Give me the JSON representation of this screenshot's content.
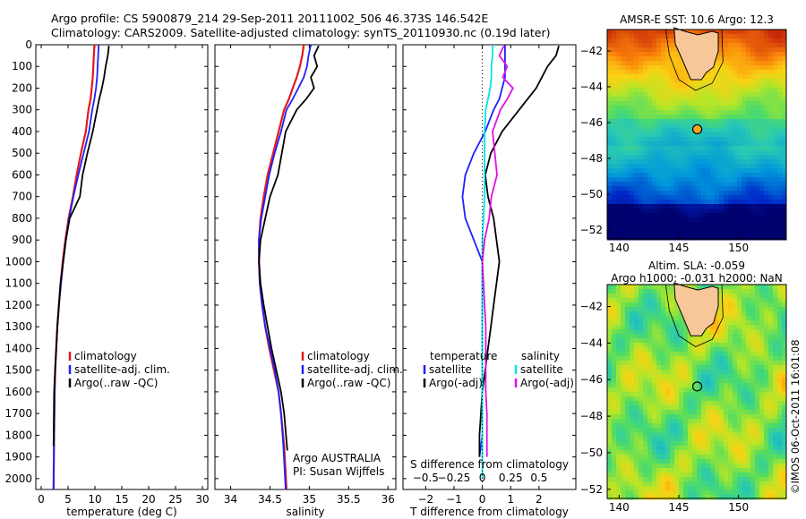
{
  "header": {
    "line1": "Argo profile: CS 5900879_214 29-Sep-2011 20111002_506 46.373S 146.542E",
    "line2": "Climatology: CARS2009. Satellite-adjusted climatology: synTS_20110930.nc (0.19d later)"
  },
  "credit": "©IMOS 06-Oct-2011 16:01:08",
  "colors": {
    "climatology": "#e41a1c",
    "satellite": "#1f1fff",
    "argo": "#000000",
    "sal_satellite": "#00e5e5",
    "sal_argo": "#e010e0",
    "land": "#f7c79a"
  },
  "chart_data": [
    {
      "type": "line",
      "xlabel": "temperature (deg C)",
      "ylabel": "",
      "xlim": [
        -1,
        31
      ],
      "ylim": [
        2050,
        0
      ],
      "xticks": [
        0,
        5,
        10,
        15,
        20,
        25,
        30
      ],
      "yticks": [
        0,
        100,
        200,
        300,
        400,
        500,
        600,
        700,
        800,
        900,
        1000,
        1100,
        1200,
        1300,
        1400,
        1500,
        1600,
        1700,
        1800,
        1900,
        2000
      ],
      "legend": [
        "climatology",
        "satellite-adj. clim.",
        "Argo(..raw -QC)"
      ],
      "legend_position": "lower-center",
      "series": [
        {
          "name": "climatology",
          "color": "#e41a1c",
          "x": [
            9.9,
            9.8,
            9.7,
            9.6,
            9.4,
            9.2,
            8.8,
            8.3,
            7.4,
            6.6,
            5.9,
            5.1,
            4.5,
            4.0,
            3.6,
            3.3,
            3.0,
            2.8,
            2.6,
            2.5,
            2.4,
            2.3
          ],
          "y": [
            0,
            50,
            100,
            150,
            200,
            250,
            300,
            400,
            500,
            600,
            700,
            800,
            900,
            1000,
            1100,
            1200,
            1300,
            1400,
            1500,
            1600,
            1800,
            2050
          ]
        },
        {
          "name": "satellite-adj. clim.",
          "color": "#1f1fff",
          "x": [
            10.7,
            10.6,
            10.5,
            10.4,
            10.2,
            9.9,
            9.5,
            8.9,
            7.9,
            6.9,
            6.0,
            5.2,
            4.6,
            4.1,
            3.7,
            3.3,
            3.0,
            2.8,
            2.6,
            2.5,
            2.4,
            2.3
          ],
          "y": [
            0,
            50,
            100,
            150,
            200,
            250,
            300,
            400,
            500,
            600,
            700,
            800,
            900,
            1000,
            1100,
            1200,
            1300,
            1400,
            1500,
            1600,
            1800,
            2050
          ]
        },
        {
          "name": "Argo(..raw -QC)",
          "color": "#000000",
          "x": [
            12.6,
            12.4,
            12.0,
            11.7,
            11.3,
            10.8,
            10.4,
            9.6,
            8.6,
            7.7,
            7.2,
            5.3,
            4.6,
            4.1,
            3.6,
            3.3,
            3.0,
            2.8,
            2.6,
            2.4,
            2.3
          ],
          "y": [
            5,
            50,
            100,
            150,
            200,
            250,
            300,
            400,
            500,
            600,
            700,
            800,
            900,
            1000,
            1100,
            1200,
            1300,
            1400,
            1500,
            1600,
            1850
          ]
        }
      ]
    },
    {
      "type": "line",
      "xlabel": "salinity",
      "ylabel": "",
      "xlim": [
        33.8,
        36.1
      ],
      "ylim": [
        2050,
        0
      ],
      "xticks": [
        34,
        34.5,
        35,
        35.5,
        36
      ],
      "legend": [
        "climatology",
        "satellite-adj. clim.",
        "Argo(..raw -QC)"
      ],
      "legend_position": "lower-right",
      "annotation": [
        "Argo AUSTRALIA",
        "PI: Susan Wijffels"
      ],
      "series": [
        {
          "name": "climatology",
          "color": "#e41a1c",
          "x": [
            34.93,
            34.91,
            34.88,
            34.84,
            34.79,
            34.74,
            34.68,
            34.61,
            34.54,
            34.47,
            34.42,
            34.38,
            34.36,
            34.36,
            34.37,
            34.4,
            34.44,
            34.49,
            34.55,
            34.61,
            34.64,
            34.68,
            34.71
          ],
          "y": [
            0,
            50,
            100,
            150,
            200,
            250,
            300,
            400,
            500,
            600,
            700,
            800,
            900,
            1000,
            1100,
            1200,
            1300,
            1400,
            1500,
            1600,
            1700,
            1850,
            2050
          ]
        },
        {
          "name": "satellite-adj. clim.",
          "color": "#1f1fff",
          "x": [
            35.02,
            34.99,
            34.97,
            34.93,
            34.86,
            34.79,
            34.71,
            34.64,
            34.56,
            34.49,
            34.44,
            34.39,
            34.36,
            34.36,
            34.37,
            34.4,
            34.44,
            34.5,
            34.56,
            34.61,
            34.64,
            34.67,
            34.7
          ],
          "y": [
            0,
            50,
            100,
            150,
            200,
            250,
            300,
            400,
            500,
            600,
            700,
            800,
            900,
            1000,
            1100,
            1200,
            1300,
            1400,
            1500,
            1600,
            1700,
            1850,
            2050
          ]
        },
        {
          "name": "Argo(..raw -QC)",
          "color": "#000000",
          "x": [
            35.12,
            35.06,
            35.1,
            35.02,
            35.06,
            34.96,
            34.84,
            34.7,
            34.65,
            34.6,
            34.5,
            34.44,
            34.38,
            34.36,
            34.38,
            34.42,
            34.47,
            34.52,
            34.58,
            34.64,
            34.68,
            34.72
          ],
          "y": [
            5,
            50,
            100,
            150,
            200,
            250,
            300,
            400,
            500,
            600,
            700,
            800,
            900,
            1000,
            1100,
            1200,
            1300,
            1400,
            1500,
            1600,
            1700,
            1870
          ]
        }
      ]
    },
    {
      "type": "line",
      "xlabel": "T difference from climatology",
      "title_inside": "S difference from climatology",
      "xlim": [
        -2.8,
        3.3
      ],
      "ylim": [
        2050,
        0
      ],
      "xticks": [
        -2,
        -1,
        0,
        1,
        2
      ],
      "xticks_salinity": [
        -0.5,
        -0.25,
        0,
        0.25,
        0.5
      ],
      "legend_groups": [
        {
          "header": "temperature",
          "items": [
            "satellite",
            "Argo(-adj)"
          ]
        },
        {
          "header": "salinity",
          "items": [
            "satellite",
            "Argo(-adj)"
          ]
        }
      ],
      "series": [
        {
          "name": "temperature satellite",
          "color": "#1f1fff",
          "x": [
            0.8,
            0.8,
            0.8,
            0.8,
            0.7,
            0.6,
            0.4,
            0.1,
            -0.3,
            -0.6,
            -0.7,
            -0.6,
            -0.3,
            0.0,
            0.0,
            0.0,
            0.0,
            0.0,
            0.0,
            0.0,
            0.0,
            -0.1
          ],
          "y": [
            0,
            50,
            100,
            150,
            200,
            250,
            300,
            400,
            500,
            600,
            700,
            800,
            900,
            1000,
            1100,
            1200,
            1300,
            1400,
            1500,
            1600,
            1800,
            1900
          ]
        },
        {
          "name": "temperature Argo(-adj)",
          "color": "#000000",
          "x": [
            2.7,
            2.6,
            2.3,
            2.1,
            1.9,
            1.6,
            1.3,
            0.7,
            0.3,
            0.1,
            0.2,
            0.4,
            0.5,
            0.6,
            0.5,
            0.4,
            0.3,
            0.2,
            0.1,
            0.0,
            -0.1,
            -0.1
          ],
          "y": [
            5,
            50,
            100,
            150,
            200,
            250,
            300,
            400,
            500,
            600,
            700,
            800,
            900,
            1000,
            1100,
            1200,
            1300,
            1400,
            1500,
            1600,
            1800,
            1900
          ]
        },
        {
          "name": "salinity satellite",
          "color": "#00e5e5",
          "x": [
            0.09,
            0.09,
            0.08,
            0.08,
            0.07,
            0.05,
            0.03,
            0.02,
            0.02,
            0.02,
            0.02,
            0.01,
            0.0,
            0.0,
            0.0,
            0.0,
            0.0,
            0.0,
            0.0,
            0.0,
            0.0
          ],
          "y": [
            0,
            50,
            100,
            150,
            200,
            250,
            300,
            400,
            500,
            600,
            700,
            800,
            900,
            1000,
            1100,
            1200,
            1300,
            1400,
            1500,
            1600,
            2000
          ]
        },
        {
          "name": "salinity Argo(-adj)",
          "color": "#e010e0",
          "x": [
            0.19,
            0.15,
            0.22,
            0.18,
            0.27,
            0.22,
            0.16,
            0.09,
            0.11,
            0.13,
            0.08,
            0.06,
            0.02,
            0.0,
            0.01,
            0.02,
            0.03,
            0.03,
            0.03,
            0.03,
            0.04,
            0.04
          ],
          "y": [
            5,
            50,
            100,
            150,
            200,
            250,
            300,
            400,
            500,
            600,
            700,
            800,
            900,
            1000,
            1100,
            1200,
            1300,
            1400,
            1500,
            1600,
            1700,
            1900
          ]
        }
      ]
    },
    {
      "type": "heatmap",
      "title": "AMSR-E SST: 10.6  Argo: 12.3",
      "xlim": [
        139,
        154
      ],
      "ylim": [
        -52.5,
        -40.8
      ],
      "xticks": [
        140,
        145,
        150
      ],
      "yticks": [
        -42,
        -44,
        -46,
        -48,
        -50,
        -52
      ],
      "marker": {
        "lon": 146.542,
        "lat": -46.373
      }
    },
    {
      "type": "heatmap",
      "title": "Altim. SLA: -0.059",
      "subtitle": "Argo h1000: -0.031 h2000: NaN",
      "xlim": [
        139,
        154
      ],
      "ylim": [
        -52.5,
        -40.8
      ],
      "xticks": [
        140,
        145,
        150
      ],
      "yticks": [
        -42,
        -44,
        -46,
        -48,
        -50,
        -52
      ],
      "marker": {
        "lon": 146.542,
        "lat": -46.373
      }
    }
  ]
}
